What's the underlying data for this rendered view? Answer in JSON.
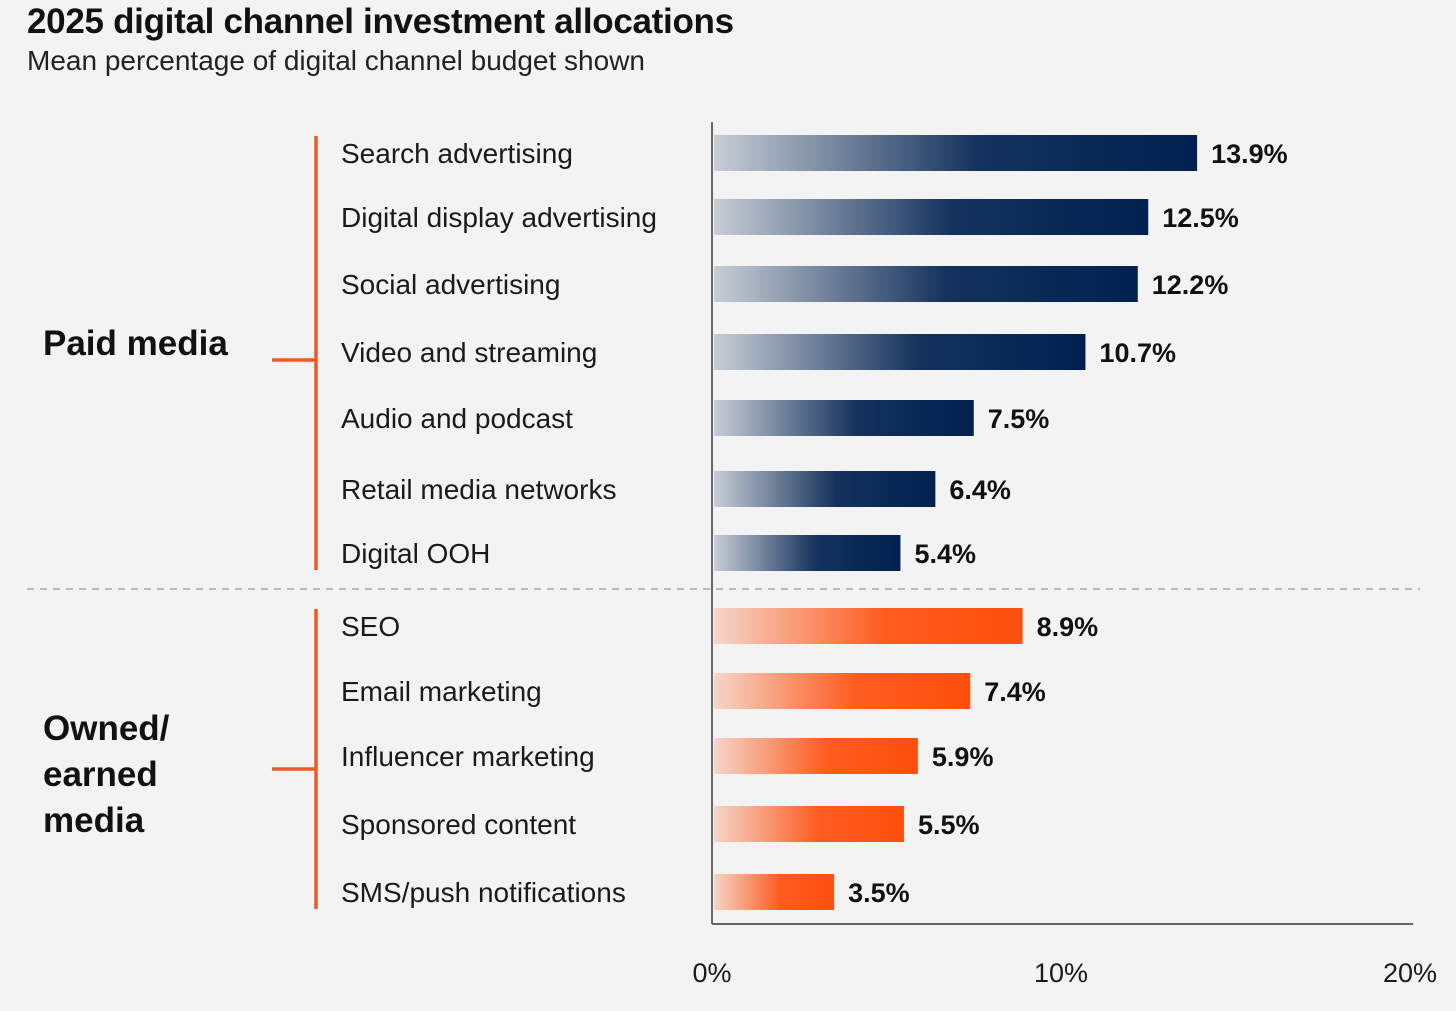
{
  "title": "2025 digital channel investment allocations",
  "subtitle": "Mean percentage of digital channel budget shown",
  "colors": {
    "paid": "#00214f",
    "owned": "#fe4f0d",
    "bracket": "#f05a22",
    "axis": "#666666",
    "divider": "#bbbbbb"
  },
  "chart_data": {
    "type": "bar",
    "orientation": "horizontal",
    "xlim": [
      0,
      20
    ],
    "x_ticks": [
      "0%",
      "10%",
      "20%"
    ],
    "gridlines": false,
    "groups": [
      {
        "name": "Paid media",
        "label_lines": [
          "Paid media"
        ],
        "color_key": "paid",
        "categories": [
          "Search advertising",
          "Digital display advertising",
          "Social advertising",
          "Video and streaming",
          "Audio and podcast",
          "Retail media networks",
          "Digital OOH"
        ],
        "values": [
          13.9,
          12.5,
          12.2,
          10.7,
          7.5,
          6.4,
          5.4
        ],
        "labels": [
          "13.9%",
          "12.5%",
          "12.2%",
          "10.7%",
          "7.5%",
          "6.4%",
          "5.4%"
        ]
      },
      {
        "name": "Owned/ earned media",
        "label_lines": [
          "Owned/",
          "earned",
          "media"
        ],
        "color_key": "owned",
        "categories": [
          "SEO",
          "Email marketing",
          "Influencer marketing",
          "Sponsored content",
          "SMS/push notifications"
        ],
        "values": [
          8.9,
          7.4,
          5.9,
          5.5,
          3.5
        ],
        "labels": [
          "8.9%",
          "7.4%",
          "5.9%",
          "5.5%",
          "3.5%"
        ]
      }
    ]
  }
}
